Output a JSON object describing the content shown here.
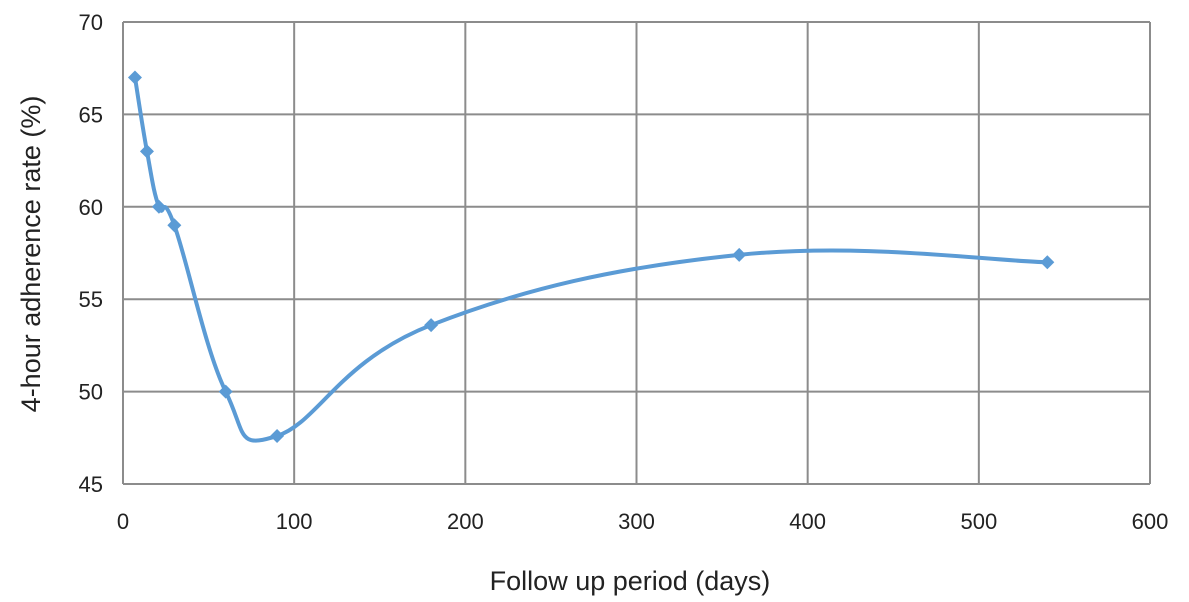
{
  "chart_data": {
    "type": "scatter",
    "title": "",
    "xlabel": "Follow up period (days)",
    "ylabel": "4-hour adherence  rate (%)",
    "xlim": [
      0,
      600
    ],
    "ylim": [
      45,
      70
    ],
    "xticks": [
      0,
      100,
      200,
      300,
      400,
      500,
      600
    ],
    "yticks": [
      45,
      50,
      55,
      60,
      65,
      70
    ],
    "xtick_labels": [
      "0",
      "100",
      "200",
      "300",
      "400",
      "500",
      "600"
    ],
    "ytick_labels": [
      "45",
      "50",
      "55",
      "60",
      "65",
      "70"
    ],
    "grid": true,
    "smooth_line": true,
    "marker": "diamond",
    "series": [
      {
        "color": "#5b9bd5",
        "x": [
          7,
          14,
          21,
          30,
          60,
          90,
          180,
          360,
          540
        ],
        "y": [
          67.0,
          63.0,
          60.0,
          59.0,
          50.0,
          47.6,
          53.6,
          57.4,
          57.0
        ]
      }
    ]
  }
}
